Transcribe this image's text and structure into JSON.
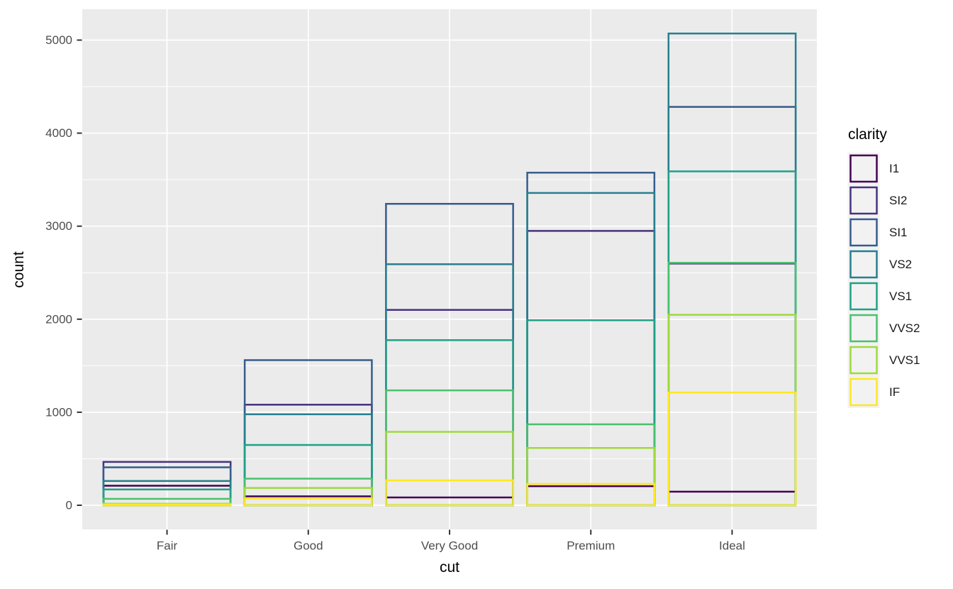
{
  "chart_data": {
    "type": "bar",
    "bar_style": "outlined_unfilled",
    "position": "identity",
    "title": "",
    "xlabel": "cut",
    "ylabel": "count",
    "legend_title": "clarity",
    "legend_position": "right",
    "grid": true,
    "categories": [
      "Fair",
      "Good",
      "Very Good",
      "Premium",
      "Ideal"
    ],
    "series": [
      {
        "name": "I1",
        "color": "#440154",
        "values": [
          210,
          96,
          84,
          205,
          146
        ]
      },
      {
        "name": "SI2",
        "color": "#46327E",
        "values": [
          466,
          1081,
          2100,
          2949,
          2598
        ]
      },
      {
        "name": "SI1",
        "color": "#365C8D",
        "values": [
          408,
          1560,
          3240,
          3575,
          4282
        ]
      },
      {
        "name": "VS2",
        "color": "#277F8E",
        "values": [
          261,
          978,
          2591,
          3357,
          5071
        ]
      },
      {
        "name": "VS1",
        "color": "#1FA187",
        "values": [
          170,
          648,
          1775,
          1989,
          3589
        ]
      },
      {
        "name": "VVS2",
        "color": "#4AC16D",
        "values": [
          69,
          286,
          1235,
          870,
          2606
        ]
      },
      {
        "name": "VVS1",
        "color": "#9FDA3A",
        "values": [
          17,
          186,
          789,
          616,
          2047
        ]
      },
      {
        "name": "IF",
        "color": "#FDE725",
        "values": [
          9,
          71,
          268,
          230,
          1212
        ]
      }
    ],
    "y_ticks": [
      0,
      1000,
      2000,
      3000,
      4000,
      5000
    ],
    "y_tick_labels": [
      "0",
      "1000",
      "2000",
      "3000",
      "4000",
      "5000"
    ],
    "y_minor_ticks": [
      500,
      1500,
      2500,
      3500,
      4500
    ],
    "ylim": [
      -254,
      5325
    ]
  },
  "style": {
    "panel_bg": "#EBEBEB",
    "grid_color": "#FFFFFF",
    "outer_bg": "#FFFFFF",
    "tick_mark_color": "#333333",
    "tick_label_color": "#4D4D4D",
    "axis_title_color": "#000000",
    "legend_label_color": "#1A1A1A",
    "legend_key_bg": "#F2F2F2"
  }
}
